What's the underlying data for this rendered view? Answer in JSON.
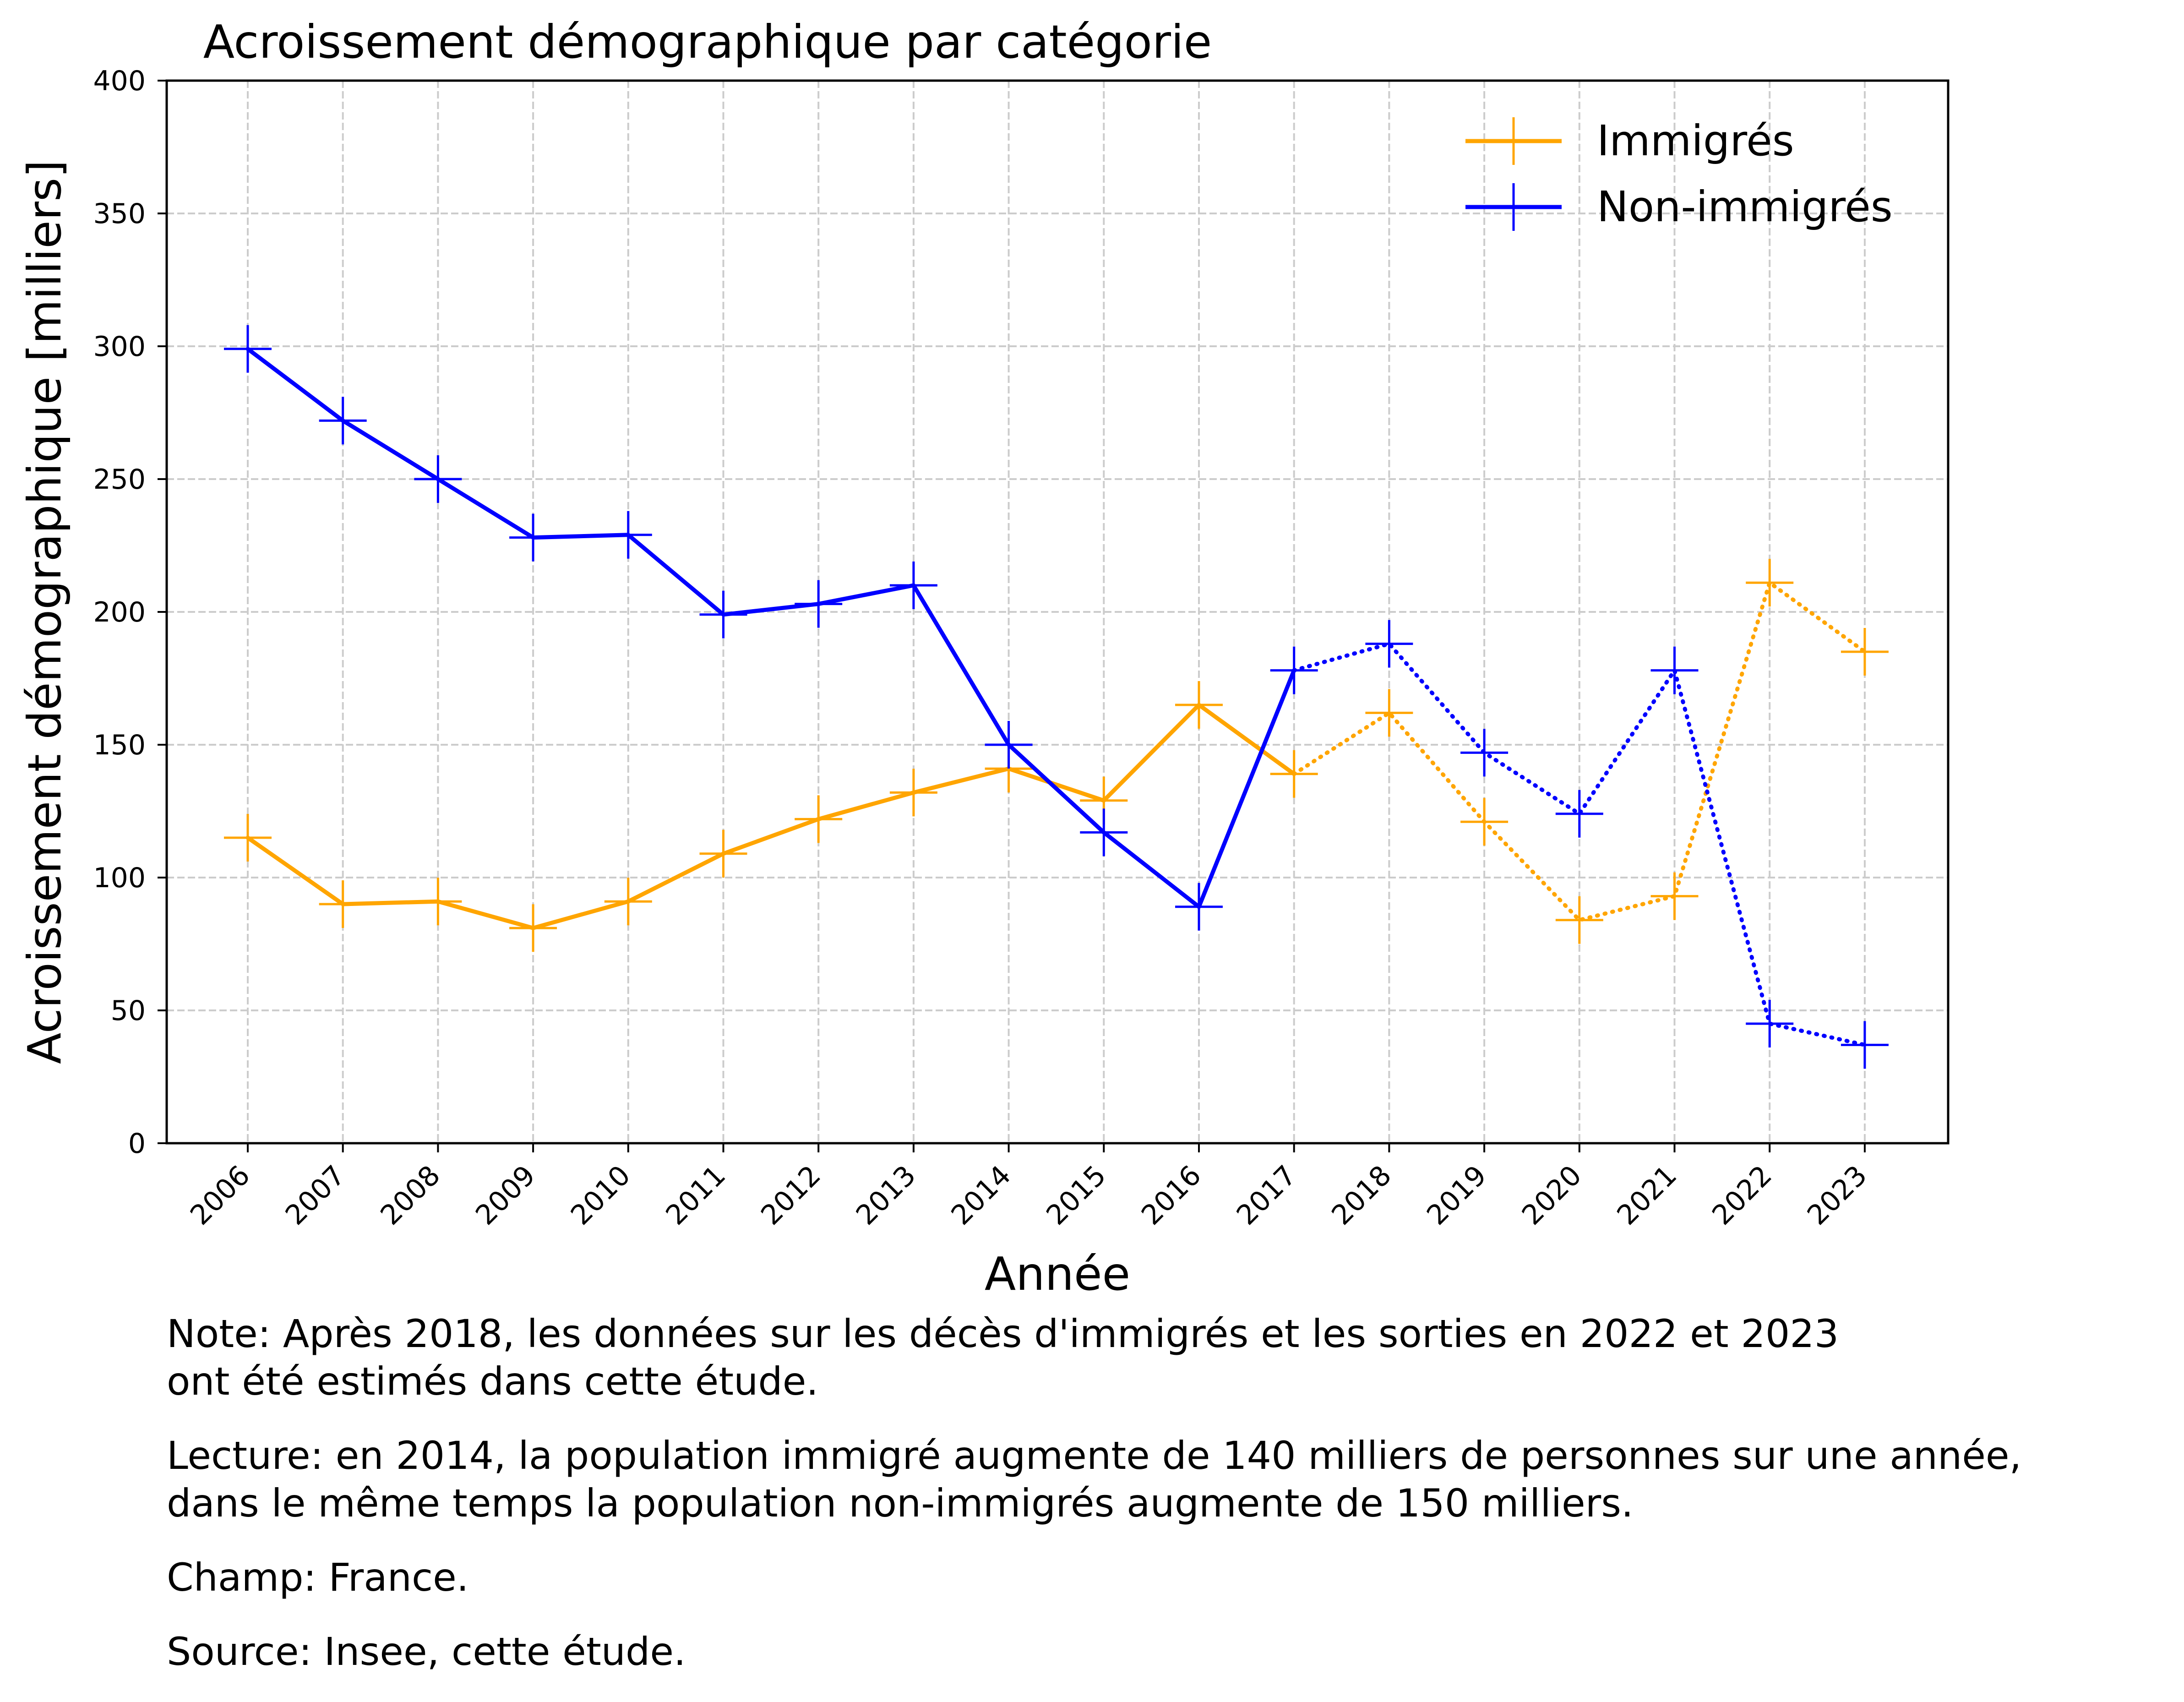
{
  "chart_data": {
    "type": "line",
    "title": "Acroissement démographique par catégorie",
    "xlabel": "Année",
    "ylabel": "Acroissement démographique [milliers]",
    "x": [
      "2006",
      "2007",
      "2008",
      "2009",
      "2010",
      "2011",
      "2012",
      "2013",
      "2014",
      "2015",
      "2016",
      "2017",
      "2018",
      "2019",
      "2020",
      "2021",
      "2022",
      "2023"
    ],
    "ylim": [
      0,
      400
    ],
    "yticks": [
      "0",
      "50",
      "100",
      "150",
      "200",
      "250",
      "300",
      "350",
      "400"
    ],
    "grid": true,
    "legend_position": "top-right",
    "dotted_from": "2017",
    "series": [
      {
        "name": "Immigrés",
        "color": "#FFA500",
        "values": [
          115,
          90,
          91,
          81,
          91,
          109,
          122,
          132,
          141,
          129,
          165,
          139,
          162,
          121,
          84,
          93,
          211,
          185
        ]
      },
      {
        "name": "Non-immigrés",
        "color": "#0000FF",
        "values": [
          299,
          272,
          250,
          228,
          229,
          199,
          203,
          210,
          150,
          117,
          89,
          178,
          188,
          147,
          124,
          178,
          45,
          37
        ]
      }
    ]
  },
  "notes": {
    "note": "Note: Après 2018, les données sur les décès d'immigrés et les sorties en 2022 et 2023\nont été estimés dans cette étude.",
    "lecture": "Lecture: en 2014, la population immigré augmente de 140 milliers de personnes sur une année,\ndans le même temps la population non-immigrés augmente de 150 milliers.",
    "champ": "Champ: France.",
    "source": "Source: Insee, cette étude."
  }
}
